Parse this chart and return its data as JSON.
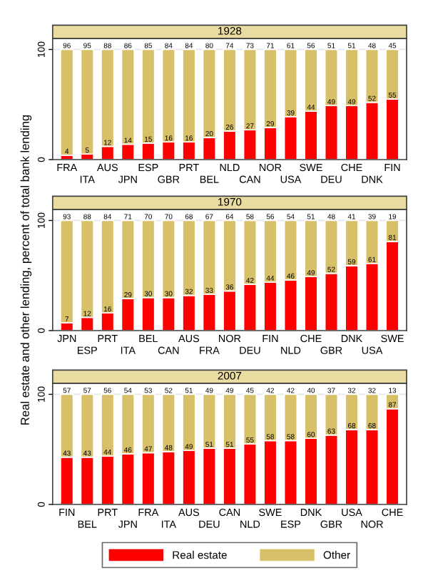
{
  "chart_data": [
    {
      "type": "bar",
      "title": "1928",
      "stacked": true,
      "data_labels": true,
      "grid": "y",
      "ylim": [
        0,
        110
      ],
      "yticks": [
        0,
        100
      ],
      "categories": [
        "FRA",
        "ITA",
        "AUS",
        "JPN",
        "ESP",
        "GBR",
        "PRT",
        "BEL",
        "NLD",
        "CAN",
        "NOR",
        "USA",
        "SWE",
        "DEU",
        "CHE",
        "DNK",
        "FIN"
      ],
      "series": [
        {
          "color": "#ff0000",
          "values": [
            4,
            5,
            12,
            14,
            15,
            16,
            16,
            20,
            26,
            27,
            29,
            39,
            44,
            49,
            49,
            52,
            55
          ]
        },
        {
          "color": "#d8c068",
          "values": [
            96,
            95,
            88,
            86,
            85,
            84,
            84,
            80,
            74,
            73,
            71,
            61,
            56,
            51,
            51,
            48,
            45
          ]
        }
      ]
    },
    {
      "type": "bar",
      "title": "1970",
      "stacked": true,
      "data_labels": true,
      "grid": "y",
      "ylim": [
        0,
        110
      ],
      "yticks": [
        0,
        100
      ],
      "ylabel": "Real estate and other lending, percent of total bank lending",
      "categories": [
        "JPN",
        "ESP",
        "PRT",
        "ITA",
        "BEL",
        "CAN",
        "AUS",
        "FRA",
        "NOR",
        "DEU",
        "FIN",
        "NLD",
        "CHE",
        "GBR",
        "DNK",
        "USA",
        "SWE"
      ],
      "series": [
        {
          "color": "#ff0000",
          "values": [
            7,
            12,
            16,
            29,
            30,
            30,
            32,
            33,
            36,
            42,
            44,
            46,
            49,
            52,
            59,
            61,
            81
          ]
        },
        {
          "color": "#d8c068",
          "values": [
            93,
            88,
            84,
            71,
            70,
            70,
            68,
            67,
            64,
            58,
            56,
            54,
            51,
            48,
            41,
            39,
            19
          ]
        }
      ]
    },
    {
      "type": "bar",
      "title": "2007",
      "stacked": true,
      "data_labels": true,
      "grid": "y",
      "ylim": [
        0,
        110
      ],
      "yticks": [
        0,
        100
      ],
      "legend": "bottom",
      "categories": [
        "FIN",
        "BEL",
        "PRT",
        "JPN",
        "FRA",
        "ITA",
        "AUS",
        "DEU",
        "CAN",
        "NLD",
        "SWE",
        "ESP",
        "DNK",
        "GBR",
        "USA",
        "NOR",
        "CHE"
      ],
      "series": [
        {
          "name": "Real estate",
          "color": "#ff0000",
          "values": [
            43,
            43,
            44,
            46,
            47,
            48,
            49,
            51,
            51,
            55,
            58,
            58,
            60,
            63,
            68,
            68,
            87
          ]
        },
        {
          "name": "Other",
          "color": "#d8c068",
          "values": [
            57,
            57,
            56,
            54,
            53,
            52,
            51,
            49,
            49,
            45,
            42,
            42,
            40,
            37,
            32,
            32,
            13
          ]
        }
      ]
    }
  ]
}
